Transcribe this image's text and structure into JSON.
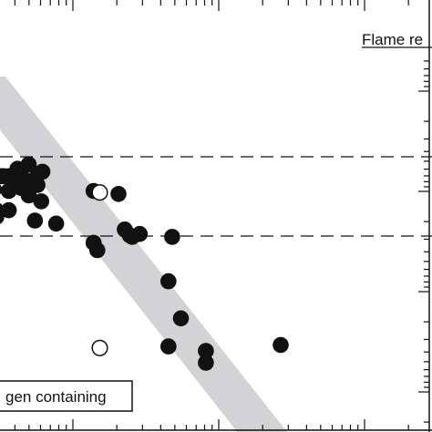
{
  "chart_data": {
    "type": "scatter",
    "title": "",
    "header_label": "Flame re",
    "legend_label": "gen containing",
    "xlabel": "",
    "ylabel": "",
    "reference_lines": "two horizontal dashed lines",
    "band": "grey diagonal band from upper-left to lower-right",
    "series": [
      {
        "marker": "filled-circle",
        "points": [
          [
            -0.3,
            0.35
          ],
          [
            -0.5,
            2.2
          ],
          [
            -0.3,
            0.8
          ],
          [
            0.1,
            3.1
          ],
          [
            0.3,
            3.1
          ],
          [
            0.7,
            3.1
          ],
          [
            1.0,
            3.1
          ],
          [
            1.4,
            3.6
          ],
          [
            1.8,
            3.0
          ],
          [
            2.3,
            3.9
          ],
          [
            2.9,
            3.0
          ],
          [
            3.4,
            3.4
          ],
          [
            1.4,
            2.4
          ],
          [
            1.7,
            2.3
          ],
          [
            2.3,
            2.4
          ],
          [
            3.0,
            2.5
          ],
          [
            0.7,
            2.1
          ],
          [
            2.3,
            1.8
          ],
          [
            3.3,
            1.4
          ],
          [
            0.7,
            0.8
          ],
          [
            2.8,
            0.1
          ],
          [
            4.5,
            -0.1
          ],
          [
            7.5,
            2.1
          ],
          [
            9.5,
            1.9
          ],
          [
            7.5,
            -1.4
          ],
          [
            7.8,
            -1.9
          ],
          [
            10.0,
            -0.5
          ],
          [
            10.4,
            -0.9
          ],
          [
            10.6,
            -1.0
          ],
          [
            11.2,
            -0.8
          ],
          [
            13.8,
            -1.0
          ],
          [
            13.5,
            -4.0
          ],
          [
            14.5,
            -6.5
          ],
          [
            13.5,
            -8.4
          ],
          [
            16.5,
            -8.7
          ],
          [
            16.5,
            -9.5
          ],
          [
            22.5,
            -8.3
          ]
        ]
      },
      {
        "marker": "open-circle",
        "points": [
          [
            8.0,
            2.0
          ],
          [
            8.0,
            -8.5
          ]
        ]
      }
    ]
  }
}
